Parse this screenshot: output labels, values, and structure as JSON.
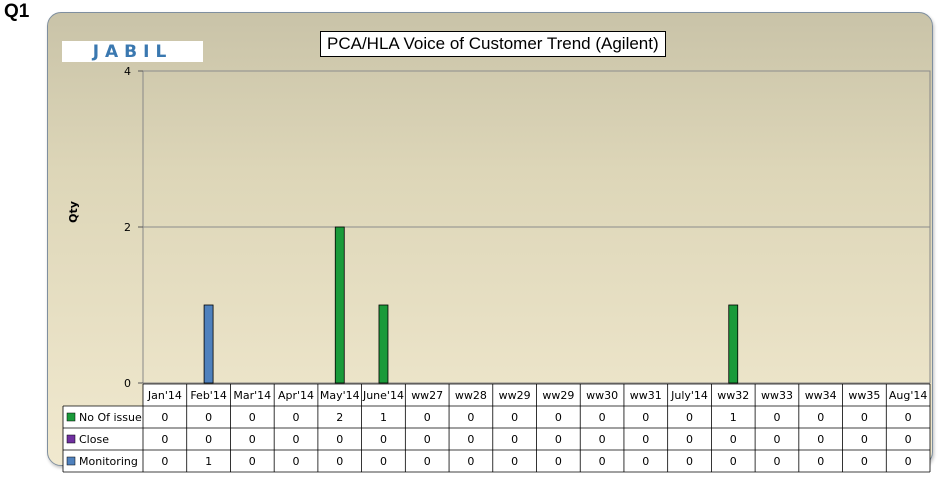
{
  "page_label": "Q1",
  "logo_text": "JABIL",
  "chart_data": {
    "type": "bar",
    "title": "PCA/HLA Voice of Customer Trend (Agilent)",
    "ylabel": "Qty",
    "xlabel": "",
    "ylim": [
      0,
      4
    ],
    "yticks": [
      0,
      2,
      4
    ],
    "categories": [
      "Jan'14",
      "Feb'14",
      "Mar'14",
      "Apr'14",
      "May'14",
      "June'14",
      "ww27",
      "ww28",
      "ww29",
      "ww29",
      "ww30",
      "ww31",
      "July'14",
      "ww32",
      "ww33",
      "ww34",
      "ww35",
      "Aug'14"
    ],
    "series": [
      {
        "name": "No Of issue",
        "color": "#1a9a3a",
        "values": [
          0,
          0,
          0,
          0,
          2,
          1,
          0,
          0,
          0,
          0,
          0,
          0,
          0,
          1,
          0,
          0,
          0,
          0
        ]
      },
      {
        "name": "Close",
        "color": "#7030a0",
        "values": [
          0,
          0,
          0,
          0,
          0,
          0,
          0,
          0,
          0,
          0,
          0,
          0,
          0,
          0,
          0,
          0,
          0,
          0
        ]
      },
      {
        "name": "Monitoring",
        "color": "#4f81bd",
        "values": [
          0,
          1,
          0,
          0,
          0,
          0,
          0,
          0,
          0,
          0,
          0,
          0,
          0,
          0,
          0,
          0,
          0,
          0
        ]
      }
    ],
    "legend": "data-table-left",
    "grid": true
  }
}
